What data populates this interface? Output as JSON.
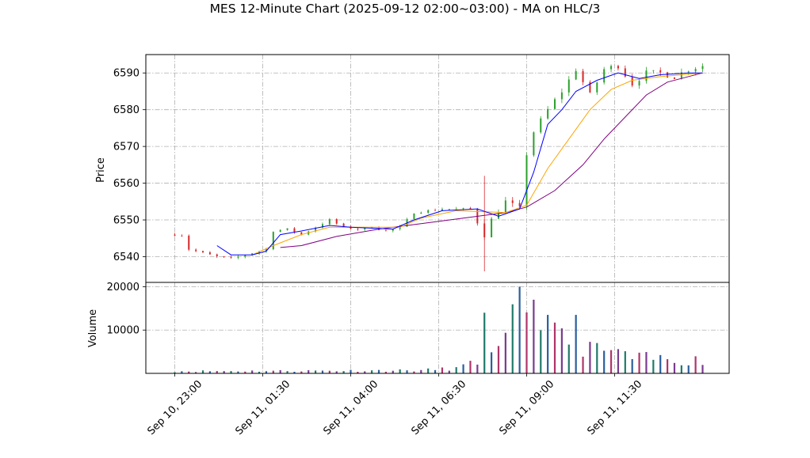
{
  "chart_data": {
    "type": "candlestick",
    "title": "MES 12-Minute Chart (2025-09-12 02:00~03:00) - MA on HLC/3",
    "price_panel": {
      "ylabel": "Price",
      "ylim": [
        6533,
        6595
      ],
      "yticks": [
        6540,
        6550,
        6560,
        6570,
        6580,
        6590
      ],
      "grid": true
    },
    "volume_panel": {
      "ylabel": "Volume",
      "ylim": [
        0,
        21000
      ],
      "yticks": [
        10000,
        20000
      ],
      "grid": true
    },
    "x_axis": {
      "start": "Sep 10, 22:00",
      "end": "Sep 11, 13:00",
      "tick_labels": [
        "Sep 10, 23:00",
        "Sep 11, 01:30",
        "Sep 11, 04:00",
        "Sep 11, 06:30",
        "Sep 11, 09:00",
        "Sep 11, 11:30"
      ],
      "tick_hours": [
        23.0,
        25.5,
        28.0,
        30.5,
        33.0,
        35.5
      ]
    },
    "colors": {
      "up": "#2ca02c",
      "down": "#d62728",
      "ma_fast": "#0000ff",
      "ma_mid": "#ffa500",
      "ma_slow": "#800080"
    },
    "price_keypoints": [
      [
        "Sep 10, 23:00",
        6546
      ],
      [
        "Sep 10, 23:10",
        6546.5
      ],
      [
        "Sep 10, 23:24",
        6542
      ],
      [
        "Sep 10, 23:48",
        6541
      ],
      [
        "Sep 11, 00:12",
        6540
      ],
      [
        "Sep 11, 00:36",
        6539.5
      ],
      [
        "Sep 11, 00:50",
        6540
      ],
      [
        "Sep 11, 01:12",
        6541
      ],
      [
        "Sep 11, 01:36",
        6542
      ],
      [
        "Sep 11, 01:48",
        6547
      ],
      [
        "Sep 11, 02:12",
        6547.5
      ],
      [
        "Sep 11, 02:36",
        6546
      ],
      [
        "Sep 11, 03:00",
        6548
      ],
      [
        "Sep 11, 03:24",
        6550
      ],
      [
        "Sep 11, 03:48",
        6548
      ],
      [
        "Sep 11, 04:12",
        6547.5
      ],
      [
        "Sep 11, 04:36",
        6548
      ],
      [
        "Sep 11, 05:00",
        6547
      ],
      [
        "Sep 11, 05:24",
        6548
      ],
      [
        "Sep 11, 05:48",
        6552
      ],
      [
        "Sep 11, 06:12",
        6552.5
      ],
      [
        "Sep 11, 06:36",
        6553
      ],
      [
        "Sep 11, 07:00",
        6553
      ],
      [
        "Sep 11, 07:24",
        6553
      ],
      [
        "Sep 11, 07:48",
        6546
      ],
      [
        "Sep 11, 08:00",
        6550
      ],
      [
        "Sep 11, 08:24",
        6555
      ],
      [
        "Sep 11, 08:48",
        6553
      ],
      [
        "Sep 11, 09:00",
        6568
      ],
      [
        "Sep 11, 09:12",
        6574
      ],
      [
        "Sep 11, 09:36",
        6580
      ],
      [
        "Sep 11, 10:00",
        6585
      ],
      [
        "Sep 11, 10:24",
        6591
      ],
      [
        "Sep 11, 10:48",
        6584
      ],
      [
        "Sep 11, 11:12",
        6591
      ],
      [
        "Sep 11, 11:36",
        6592
      ],
      [
        "Sep 11, 12:00",
        6587
      ],
      [
        "Sep 11, 12:24",
        6590
      ],
      [
        "Sep 11, 12:48",
        6590
      ],
      [
        "Sep 11, 13:12",
        6589
      ],
      [
        "Sep 11, 13:36",
        6591
      ],
      [
        "Sep 11, 14:00",
        6592
      ]
    ],
    "ma_fast_keypoints": [
      [
        "Sep 11, 00:12",
        6543
      ],
      [
        "Sep 11, 00:36",
        6540.5
      ],
      [
        "Sep 11, 01:12",
        6540.5
      ],
      [
        "Sep 11, 01:36",
        6541.5
      ],
      [
        "Sep 11, 02:00",
        6546
      ],
      [
        "Sep 11, 02:36",
        6547
      ],
      [
        "Sep 11, 03:24",
        6548.5
      ],
      [
        "Sep 11, 04:00",
        6548
      ],
      [
        "Sep 11, 05:12",
        6547.5
      ],
      [
        "Sep 11, 05:48",
        6550
      ],
      [
        "Sep 11, 06:36",
        6552.5
      ],
      [
        "Sep 11, 07:36",
        6553
      ],
      [
        "Sep 11, 08:12",
        6551
      ],
      [
        "Sep 11, 08:48",
        6553
      ],
      [
        "Sep 11, 09:12",
        6563
      ],
      [
        "Sep 11, 09:36",
        6576
      ],
      [
        "Sep 11, 10:00",
        6580
      ],
      [
        "Sep 11, 10:24",
        6585
      ],
      [
        "Sep 11, 11:00",
        6588
      ],
      [
        "Sep 11, 11:36",
        6590
      ],
      [
        "Sep 11, 12:12",
        6588.5
      ],
      [
        "Sep 11, 12:48",
        6589.5
      ],
      [
        "Sep 11, 13:36",
        6590
      ],
      [
        "Sep 11, 14:00",
        6590
      ]
    ],
    "ma_mid_keypoints": [
      [
        "Sep 11, 01:12",
        6540.5
      ],
      [
        "Sep 11, 01:48",
        6543
      ],
      [
        "Sep 11, 02:36",
        6546
      ],
      [
        "Sep 11, 03:24",
        6548
      ],
      [
        "Sep 11, 04:12",
        6548
      ],
      [
        "Sep 11, 05:24",
        6548
      ],
      [
        "Sep 11, 06:00",
        6550.5
      ],
      [
        "Sep 11, 07:00",
        6552.5
      ],
      [
        "Sep 11, 08:24",
        6552
      ],
      [
        "Sep 11, 09:00",
        6554
      ],
      [
        "Sep 11, 09:36",
        6564
      ],
      [
        "Sep 11, 10:12",
        6572
      ],
      [
        "Sep 11, 10:48",
        6580
      ],
      [
        "Sep 11, 11:24",
        6585.5
      ],
      [
        "Sep 11, 12:00",
        6588
      ],
      [
        "Sep 11, 12:48",
        6589
      ],
      [
        "Sep 11, 14:00",
        6590
      ]
    ],
    "ma_slow_keypoints": [
      [
        "Sep 11, 02:00",
        6542.5
      ],
      [
        "Sep 11, 02:36",
        6543
      ],
      [
        "Sep 11, 03:36",
        6545.5
      ],
      [
        "Sep 11, 04:48",
        6547.5
      ],
      [
        "Sep 11, 06:00",
        6549
      ],
      [
        "Sep 11, 07:12",
        6550.5
      ],
      [
        "Sep 11, 08:24",
        6552
      ],
      [
        "Sep 11, 09:00",
        6553.5
      ],
      [
        "Sep 11, 09:48",
        6558
      ],
      [
        "Sep 11, 10:36",
        6565
      ],
      [
        "Sep 11, 11:12",
        6572
      ],
      [
        "Sep 11, 11:48",
        6578
      ],
      [
        "Sep 11, 12:24",
        6584
      ],
      [
        "Sep 11, 13:00",
        6587.5
      ],
      [
        "Sep 11, 14:00",
        6590
      ]
    ],
    "volume_keypoints": [
      [
        "Sep 10, 23:00",
        500
      ],
      [
        "Sep 11, 03:00",
        600
      ],
      [
        "Sep 11, 06:00",
        700
      ],
      [
        "Sep 11, 07:00",
        1200
      ],
      [
        "Sep 11, 07:36",
        2500
      ],
      [
        "Sep 11, 08:12",
        4500
      ],
      [
        "Sep 11, 08:36",
        11000
      ],
      [
        "Sep 11, 09:00",
        15000
      ],
      [
        "Sep 11, 09:24",
        9000
      ],
      [
        "Sep 11, 10:00",
        8000
      ],
      [
        "Sep 11, 10:36",
        7000
      ],
      [
        "Sep 11, 11:12",
        5000
      ],
      [
        "Sep 11, 12:00",
        3500
      ],
      [
        "Sep 11, 14:00",
        3000
      ]
    ],
    "volume_spikes": [
      [
        "Sep 11, 07:48",
        14000
      ],
      [
        "Sep 11, 08:48",
        20000
      ],
      [
        "Sep 11, 09:12",
        17000
      ],
      [
        "Sep 11, 09:36",
        13500
      ],
      [
        "Sep 11, 10:24",
        13500
      ],
      [
        "Sep 11, 11:00",
        7000
      ],
      [
        "Sep 11, 11:36",
        5600
      ]
    ]
  }
}
